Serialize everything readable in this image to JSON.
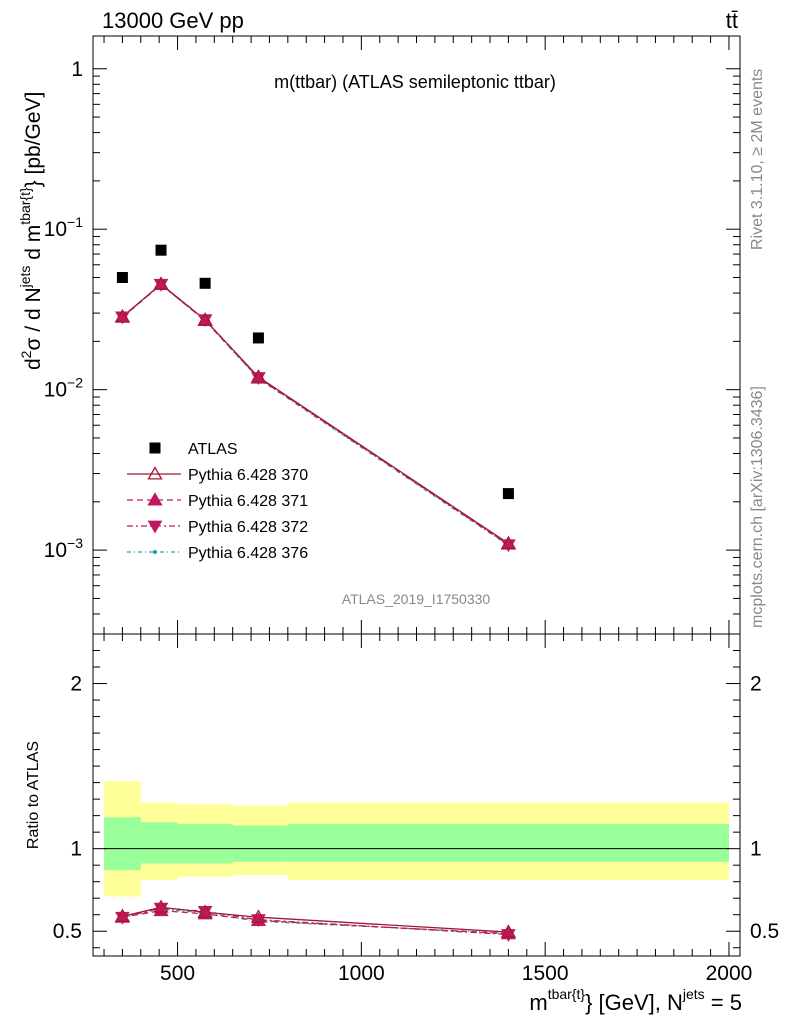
{
  "header": {
    "energy_label": "13000 GeV pp",
    "process_label": "tt̄"
  },
  "side_labels": {
    "rivet": "Rivet 3.1.10, ≥ 2M events",
    "mcplots": "mcplots.cern.ch [arXiv:1306.3436]"
  },
  "watermark": "ATLAS_2019_I1750330",
  "chart_data": [
    {
      "type": "scatter",
      "panel": "main",
      "title": "m(ttbar) (ATLAS semileptonic ttbar)",
      "ylabel": "d²σ / d N^jets d m^tbar{t} [pb/GeV]",
      "ylabel_parts": {
        "main": "d",
        "sup2": "2",
        "sigma": "σ / d N",
        "jets": "jets",
        "dm": " d m",
        "tbar": "tbar{t}",
        "unit": "} [pb/GeV]"
      },
      "yscale": "log",
      "ylim": [
        0.0003,
        1.6
      ],
      "xlim": [
        270,
        2030
      ],
      "y_tick_labels": [
        {
          "value": 1,
          "base": "1",
          "exp": ""
        },
        {
          "value": 0.1,
          "base": "10",
          "exp": "−1"
        },
        {
          "value": 0.01,
          "base": "10",
          "exp": "−2"
        },
        {
          "value": 0.001,
          "base": "10",
          "exp": "−3"
        }
      ],
      "legend_position": "lower-left",
      "series": [
        {
          "name": "ATLAS",
          "kind": "data",
          "color": "#000000",
          "marker": "square",
          "x": [
            350,
            455,
            575,
            720,
            1400
          ],
          "y": [
            0.05,
            0.074,
            0.046,
            0.021,
            0.00225
          ],
          "bins": [
            [
              300,
              400
            ],
            [
              400,
              500
            ],
            [
              500,
              650
            ],
            [
              650,
              800
            ],
            [
              800,
              2000
            ]
          ]
        },
        {
          "name": "Pythia 6.428 370",
          "kind": "mc",
          "color": "#a01c2e",
          "marker": "triangle-up-open",
          "dash": "",
          "x": [
            350,
            455,
            575,
            720,
            1400
          ],
          "y": [
            0.0285,
            0.0455,
            0.0272,
            0.012,
            0.0011
          ]
        },
        {
          "name": "Pythia 6.428 371",
          "kind": "mc",
          "color": "#c01860",
          "marker": "triangle-up-filled",
          "dash": "6,4",
          "x": [
            350,
            455,
            575,
            720,
            1400
          ],
          "y": [
            0.0283,
            0.0452,
            0.027,
            0.0118,
            0.00109
          ]
        },
        {
          "name": "Pythia 6.428 372",
          "kind": "mc",
          "color": "#c01860",
          "marker": "triangle-down-filled",
          "dash": "6,3,2,3",
          "x": [
            350,
            455,
            575,
            720,
            1400
          ],
          "y": [
            0.0284,
            0.0454,
            0.0273,
            0.0119,
            0.00108
          ]
        },
        {
          "name": "Pythia 6.428 376",
          "kind": "mc",
          "color": "#1aa7a0",
          "marker": "dot",
          "dash": "4,3,1,3",
          "x": [
            350,
            455,
            575,
            720,
            1400
          ],
          "y": [
            0.0282,
            0.045,
            0.0269,
            0.0117,
            0.00107
          ]
        }
      ]
    },
    {
      "type": "scatter",
      "panel": "ratio",
      "ylabel": "Ratio to ATLAS",
      "ylim": [
        0.35,
        2.3
      ],
      "xlim": [
        270,
        2030
      ],
      "xlabel_parts": {
        "m": "m",
        "sup": "tbar{t}",
        "rest": "} [GeV], N",
        "jets": "jets",
        "tail": " = 5"
      },
      "y_tick_labels": [
        {
          "value": 2,
          "label": "2"
        },
        {
          "value": 1,
          "label": "1"
        },
        {
          "value": 0.5,
          "label": "0.5"
        }
      ],
      "x_tick_labels": [
        {
          "value": 500,
          "label": "500"
        },
        {
          "value": 1000,
          "label": "1000"
        },
        {
          "value": 1500,
          "label": "1500"
        },
        {
          "value": 2000,
          "label": "2000"
        }
      ],
      "bands": [
        {
          "x": [
            300,
            400
          ],
          "stat": [
            0.87,
            1.19
          ],
          "total": [
            0.71,
            1.41
          ]
        },
        {
          "x": [
            400,
            500
          ],
          "stat": [
            0.91,
            1.16
          ],
          "total": [
            0.81,
            1.28
          ]
        },
        {
          "x": [
            500,
            650
          ],
          "stat": [
            0.91,
            1.15
          ],
          "total": [
            0.83,
            1.27
          ]
        },
        {
          "x": [
            650,
            800
          ],
          "stat": [
            0.92,
            1.14
          ],
          "total": [
            0.84,
            1.26
          ]
        },
        {
          "x": [
            800,
            2000
          ],
          "stat": [
            0.92,
            1.15
          ],
          "total": [
            0.81,
            1.28
          ]
        }
      ],
      "band_colors": {
        "stat": "#99ff99",
        "total": "#ffff99"
      },
      "series": [
        {
          "name": "Pythia 6.428 370",
          "color": "#a01c2e",
          "marker": "triangle-up-open",
          "dash": "",
          "x": [
            350,
            455,
            575,
            720,
            1400
          ],
          "y": [
            0.59,
            0.645,
            0.615,
            0.585,
            0.495
          ]
        },
        {
          "name": "Pythia 6.428 371",
          "color": "#c01860",
          "marker": "triangle-up-filled",
          "dash": "6,4",
          "x": [
            350,
            455,
            575,
            720,
            1400
          ],
          "y": [
            0.585,
            0.625,
            0.605,
            0.565,
            0.485
          ]
        },
        {
          "name": "Pythia 6.428 372",
          "color": "#c01860",
          "marker": "triangle-down-filled",
          "dash": "6,3,2,3",
          "x": [
            350,
            455,
            575,
            720,
            1400
          ],
          "y": [
            0.585,
            0.64,
            0.62,
            0.57,
            0.48
          ]
        },
        {
          "name": "Pythia 6.428 376",
          "color": "#1aa7a0",
          "marker": "dot",
          "dash": "4,3,1,3",
          "x": [
            350,
            455,
            575,
            720,
            1400
          ],
          "y": [
            0.58,
            0.635,
            0.61,
            0.56,
            0.488
          ]
        }
      ]
    }
  ]
}
